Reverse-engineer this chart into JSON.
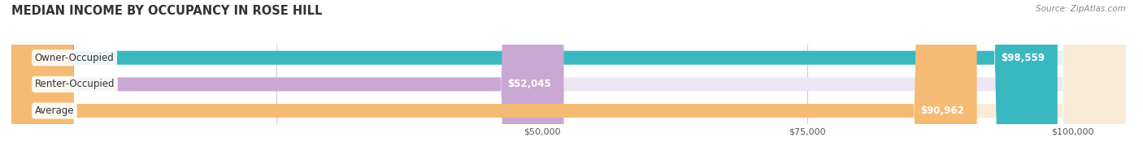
{
  "title": "MEDIAN INCOME BY OCCUPANCY IN ROSE HILL",
  "source": "Source: ZipAtlas.com",
  "categories": [
    "Owner-Occupied",
    "Renter-Occupied",
    "Average"
  ],
  "values": [
    98559,
    52045,
    90962
  ],
  "bar_colors": [
    "#3ab8c0",
    "#c9a8d4",
    "#f5bb74"
  ],
  "bar_labels": [
    "$98,559",
    "$52,045",
    "$90,962"
  ],
  "bg_colors": [
    "#e0f4f5",
    "#ede6f5",
    "#faebd7"
  ],
  "xlim": [
    0,
    105000
  ],
  "title_fontsize": 10.5,
  "label_fontsize": 8.5,
  "tick_fontsize": 8,
  "bar_height": 0.52,
  "fig_width": 14.06,
  "fig_height": 1.96,
  "background_color": "#ffffff",
  "grid_color": "#cccccc",
  "text_color": "#333333",
  "source_color": "#888888"
}
